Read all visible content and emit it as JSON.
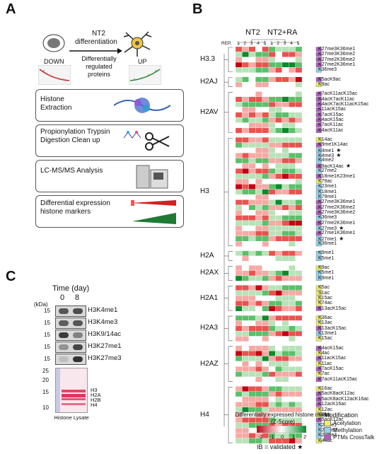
{
  "panels": {
    "a": "A",
    "b": "B",
    "c": "C"
  },
  "panel_a": {
    "nt2_label": "NT2",
    "differentiation_label": "differentiation",
    "down_label": "DOWN",
    "up_label": "UP",
    "diff_regulated": "Differentially regulated proteins",
    "steps": [
      "Histone Extraction",
      "Propionylation Trypsin Digestion Clean up",
      "LC-MS/MS Analysis",
      "Differential expression histone markers"
    ]
  },
  "panel_b": {
    "header_nt2": "NT2",
    "header_nt2ra": "NT2+RA",
    "rep_label": "REP.",
    "rep_numbers": [
      "1",
      "2",
      "3",
      "4",
      "5",
      "1",
      "2",
      "3",
      "4",
      "5"
    ],
    "groups": [
      {
        "name": "H3.3",
        "ptms": [
          "K27me3K36me1",
          "K27me3K36me2",
          "K27me2K36me2",
          "K27me2K36me1",
          "K36me3"
        ]
      },
      {
        "name": "H2AJ",
        "ptms": [
          "K5acK9ac",
          "K9ac"
        ]
      },
      {
        "name": "H2AV",
        "ptms": [
          "K7acK11acK15ac",
          "K4acK7acK11ac",
          "K4acK7acK11acK15ac",
          "K11acK15ac",
          "K7acK15ac",
          "K4acK15ac",
          "K7acK11ac",
          "K4acK11ac"
        ]
      },
      {
        "name": "H3",
        "ptms": [
          "K14ac",
          "K9me1K14ac",
          "K4me1",
          "K4me3",
          "K4me2",
          "K9acK14ac",
          "K27me2",
          "K18me1K23me1",
          "K79ac",
          "K23me1",
          "K18me1",
          "K79me1",
          "K27me3K36me1",
          "K27me2K36me2",
          "K27me3K36me2",
          "K36me3",
          "K27me2K36me1",
          "K27me3",
          "K27me1K36me1",
          "K27me1",
          "K36me1"
        ]
      },
      {
        "name": "H2A",
        "ptms": [
          "K9me1",
          "K5me1"
        ]
      },
      {
        "name": "H2AX",
        "ptms": [
          "K9ac",
          "K5me1",
          "K9me1"
        ]
      },
      {
        "name": "H2A1",
        "ptms": [
          "K5ac",
          "S1ac",
          "K15ac",
          "K74ac",
          "K13acK15ac"
        ]
      },
      {
        "name": "H2A3",
        "ptms": [
          "K36ac",
          "K13ac",
          "K13acK15ac",
          "K13me1",
          "K15ac"
        ]
      },
      {
        "name": "H2AZ",
        "ptms": [
          "K4acK15ac",
          "K4ac",
          "K11acK15ac",
          "K11ac",
          "K7acK15ac",
          "K7ac",
          "K7acK11acK15ac"
        ]
      },
      {
        "name": "H4",
        "ptms": [
          "K16ac",
          "K5acK8acK12ac",
          "K5acK8acK12acK16ac",
          "K12acK16ac",
          "K12ac",
          "K8ac",
          "K5acK12ac",
          "K20me1",
          "K20me2",
          "K20me3",
          "K44ac"
        ]
      }
    ],
    "validated_marks": [
      "K4me1",
      "K4me3",
      "K9acK14ac",
      "K27me3",
      "K27me1"
    ],
    "scale_title": "Differentially expressed histone marks (Z-Score)",
    "scale_ticks": [
      "-2",
      "-1",
      "0",
      "1",
      "2"
    ],
    "validated_note": "IB = validated ★",
    "legend_title": "Modification",
    "legend": [
      {
        "label": "Acetylation",
        "color": "#eeee6a"
      },
      {
        "label": "Methylation",
        "color": "#8fd3ee"
      },
      {
        "label": "PTMs CrossTalk",
        "color": "#b05cc0"
      }
    ],
    "star": "★"
  },
  "panel_c": {
    "title": "Time (day)",
    "days": [
      "0",
      "8"
    ],
    "kda_label": "(kDa)",
    "blots": [
      {
        "kda": "15",
        "name": "H3K4me1",
        "b0": 0.75,
        "b8": 0.8
      },
      {
        "kda": "15",
        "name": "H3K4me3",
        "b0": 0.7,
        "b8": 0.75
      },
      {
        "kda": "15",
        "name": "H3K9/14ac",
        "b0": 0.9,
        "b8": 0.5
      },
      {
        "kda": "15",
        "name": "H3K27me1",
        "b0": 0.4,
        "b8": 0.85
      },
      {
        "kda": "15",
        "name": "H3K27me3",
        "b0": 0.15,
        "b8": 0.95
      }
    ],
    "ponceau_kda": [
      "25",
      "20",
      "15",
      "10"
    ],
    "ponceau_bands": [
      "H3",
      "H2A",
      "H2B",
      "H4"
    ],
    "lysate_label": "Histone Lysate"
  }
}
